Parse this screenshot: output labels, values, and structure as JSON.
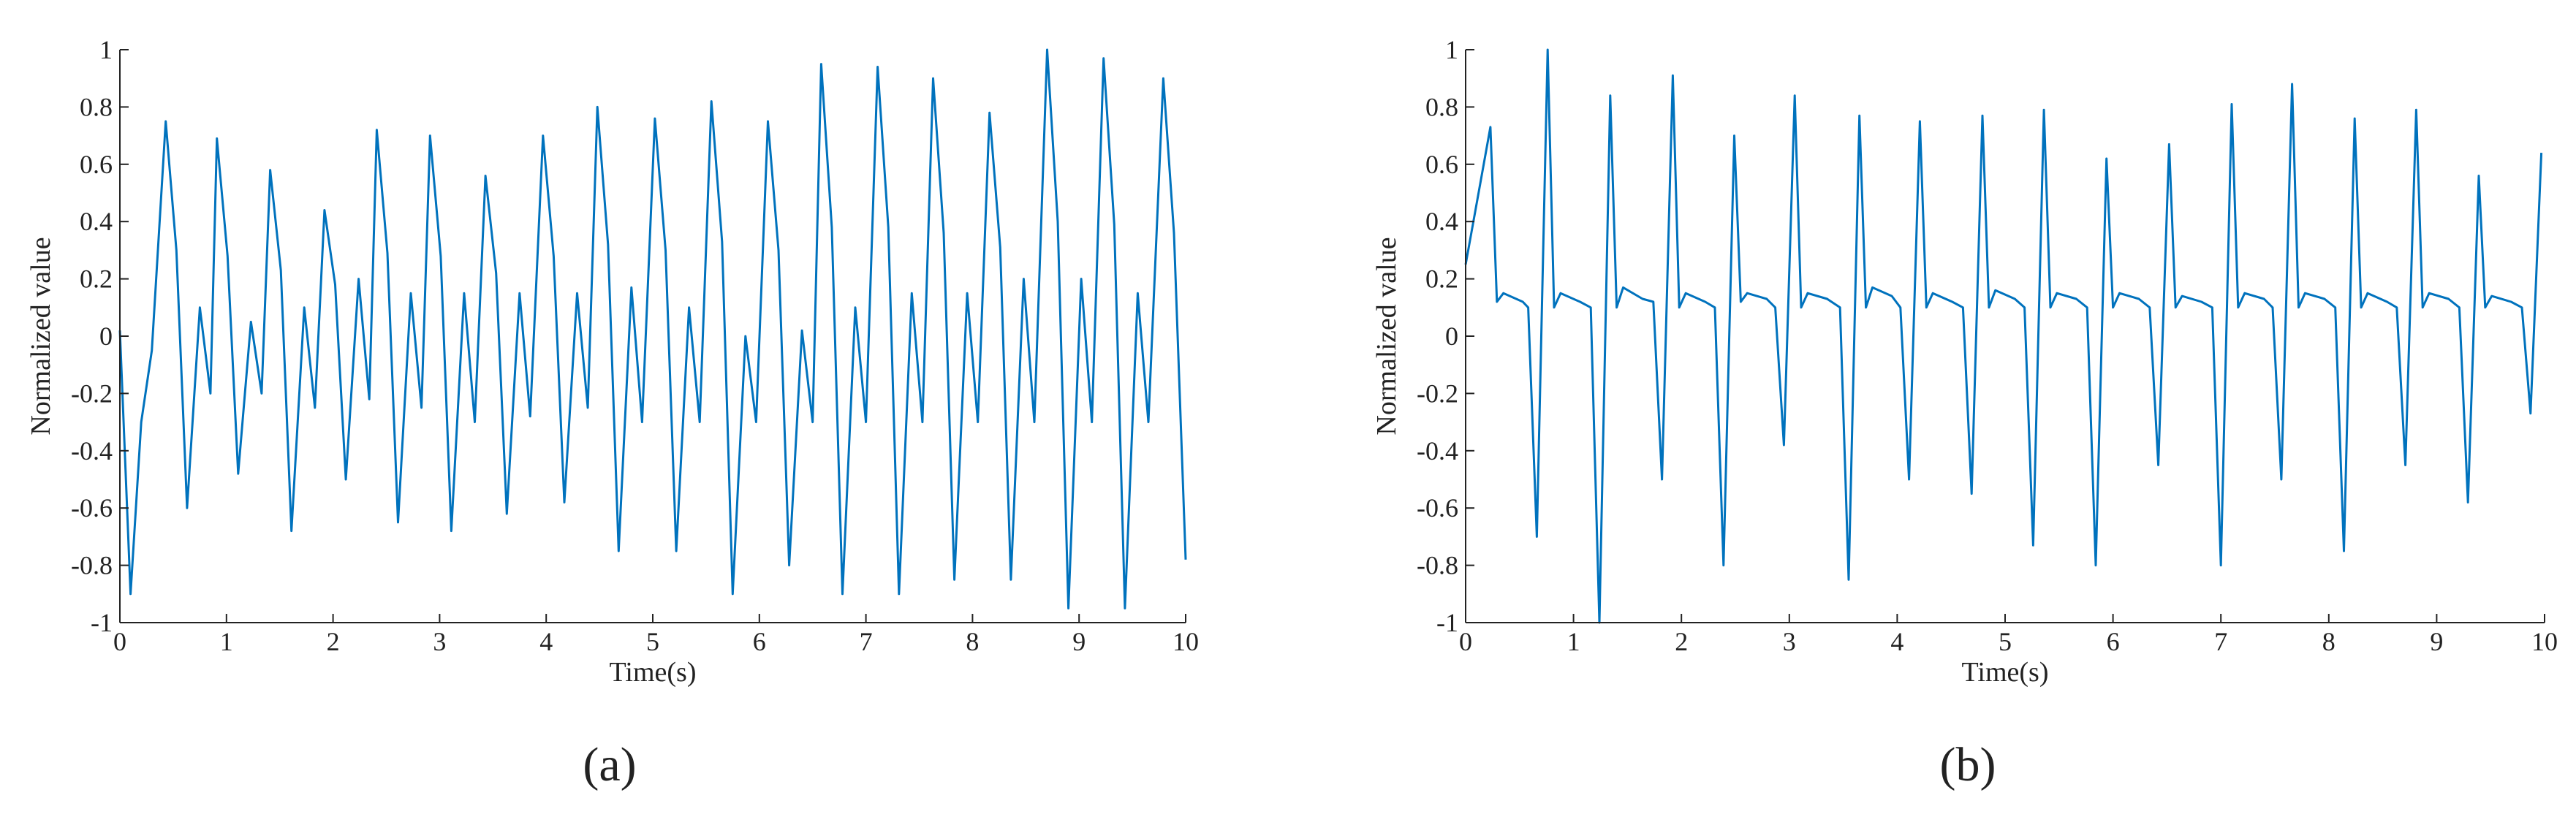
{
  "chart_data": [
    {
      "type": "line",
      "label": "(a)",
      "xlabel": "Time(s)",
      "ylabel": "Normalized value",
      "color": "#0072bd",
      "xlim": [
        0,
        10
      ],
      "xticks": [
        0,
        1,
        2,
        3,
        4,
        5,
        6,
        7,
        8,
        9,
        10
      ],
      "ylim": [
        -1,
        1
      ],
      "yticks": [
        -1,
        -0.8,
        -0.6,
        -0.4,
        -0.2,
        0,
        0.2,
        0.4,
        0.6,
        0.8,
        1
      ],
      "x": [
        0,
        0.1,
        0.2,
        0.3,
        0.43,
        0.53,
        0.63,
        0.75,
        0.85,
        0.91,
        1.01,
        1.11,
        1.23,
        1.33,
        1.41,
        1.51,
        1.61,
        1.73,
        1.83,
        1.92,
        2.02,
        2.12,
        2.24,
        2.34,
        2.41,
        2.51,
        2.61,
        2.73,
        2.83,
        2.91,
        3.01,
        3.11,
        3.23,
        3.33,
        3.43,
        3.53,
        3.63,
        3.75,
        3.85,
        3.97,
        4.07,
        4.17,
        4.29,
        4.39,
        4.48,
        4.58,
        4.68,
        4.8,
        4.9,
        5.02,
        5.12,
        5.22,
        5.34,
        5.44,
        5.55,
        5.65,
        5.75,
        5.87,
        5.97,
        6.08,
        6.18,
        6.28,
        6.4,
        6.5,
        6.58,
        6.68,
        6.78,
        6.9,
        7.0,
        7.11,
        7.21,
        7.31,
        7.43,
        7.53,
        7.63,
        7.73,
        7.83,
        7.95,
        8.05,
        8.16,
        8.26,
        8.36,
        8.48,
        8.58,
        8.7,
        8.8,
        8.9,
        9.02,
        9.12,
        9.23,
        9.33,
        9.43,
        9.55,
        9.65,
        9.79,
        9.89,
        10
      ],
      "values": [
        0.02,
        -0.9,
        -0.3,
        -0.05,
        0.75,
        0.3,
        -0.6,
        0.1,
        -0.2,
        0.69,
        0.28,
        -0.48,
        0.05,
        -0.2,
        0.58,
        0.23,
        -0.68,
        0.1,
        -0.25,
        0.44,
        0.18,
        -0.5,
        0.2,
        -0.22,
        0.72,
        0.29,
        -0.65,
        0.15,
        -0.25,
        0.7,
        0.28,
        -0.68,
        0.15,
        -0.3,
        0.56,
        0.22,
        -0.62,
        0.15,
        -0.28,
        0.7,
        0.28,
        -0.58,
        0.15,
        -0.25,
        0.8,
        0.32,
        -0.75,
        0.17,
        -0.3,
        0.76,
        0.3,
        -0.75,
        0.1,
        -0.3,
        0.82,
        0.33,
        -0.9,
        0,
        -0.3,
        0.75,
        0.3,
        -0.8,
        0.02,
        -0.3,
        0.95,
        0.38,
        -0.9,
        0.1,
        -0.3,
        0.94,
        0.38,
        -0.9,
        0.15,
        -0.3,
        0.9,
        0.36,
        -0.85,
        0.15,
        -0.3,
        0.78,
        0.31,
        -0.85,
        0.2,
        -0.3,
        1,
        0.4,
        -0.95,
        0.2,
        -0.3,
        0.97,
        0.39,
        -0.95,
        0.15,
        -0.3,
        0.9,
        0.36,
        -0.78
      ]
    },
    {
      "type": "line",
      "label": "(b)",
      "xlabel": "Time(s)",
      "ylabel": "Normalized value",
      "color": "#0072bd",
      "xlim": [
        0,
        10
      ],
      "xticks": [
        0,
        1,
        2,
        3,
        4,
        5,
        6,
        7,
        8,
        9,
        10
      ],
      "ylim": [
        -1,
        1
      ],
      "yticks": [
        -1,
        -0.8,
        -0.6,
        -0.4,
        -0.2,
        0,
        0.2,
        0.4,
        0.6,
        0.8,
        1
      ],
      "x": [
        0,
        0.12,
        0.23,
        0.29,
        0.35,
        0.53,
        0.58,
        0.66,
        0.76,
        0.82,
        0.88,
        1.06,
        1.16,
        1.24,
        1.34,
        1.4,
        1.46,
        1.64,
        1.74,
        1.82,
        1.92,
        1.98,
        2.04,
        2.22,
        2.31,
        2.39,
        2.49,
        2.55,
        2.61,
        2.79,
        2.87,
        2.95,
        3.05,
        3.11,
        3.17,
        3.35,
        3.47,
        3.55,
        3.65,
        3.71,
        3.77,
        3.95,
        4.03,
        4.11,
        4.21,
        4.27,
        4.33,
        4.51,
        4.61,
        4.69,
        4.79,
        4.85,
        4.91,
        5.09,
        5.18,
        5.26,
        5.36,
        5.42,
        5.48,
        5.66,
        5.76,
        5.84,
        5.94,
        6,
        6.06,
        6.24,
        6.34,
        6.42,
        6.52,
        6.58,
        6.64,
        6.82,
        6.92,
        7,
        7.1,
        7.16,
        7.22,
        7.4,
        7.48,
        7.56,
        7.66,
        7.72,
        7.78,
        7.96,
        8.06,
        8.14,
        8.24,
        8.3,
        8.36,
        8.54,
        8.63,
        8.71,
        8.81,
        8.87,
        8.93,
        9.11,
        9.21,
        9.29,
        9.39,
        9.45,
        9.51,
        9.69,
        9.79,
        9.87,
        9.97
      ],
      "values": [
        0.25,
        0.5,
        0.73,
        0.12,
        0.15,
        0.12,
        0.1,
        -0.7,
        1,
        0.1,
        0.15,
        0.12,
        0.1,
        -1,
        0.84,
        0.1,
        0.17,
        0.13,
        0.12,
        -0.5,
        0.91,
        0.1,
        0.15,
        0.12,
        0.1,
        -0.8,
        0.7,
        0.12,
        0.15,
        0.13,
        0.1,
        -0.38,
        0.84,
        0.1,
        0.15,
        0.13,
        0.1,
        -0.85,
        0.77,
        0.1,
        0.17,
        0.14,
        0.1,
        -0.5,
        0.75,
        0.1,
        0.15,
        0.12,
        0.1,
        -0.55,
        0.77,
        0.1,
        0.16,
        0.13,
        0.1,
        -0.73,
        0.79,
        0.1,
        0.15,
        0.13,
        0.1,
        -0.8,
        0.62,
        0.1,
        0.15,
        0.13,
        0.1,
        -0.45,
        0.67,
        0.1,
        0.14,
        0.12,
        0.1,
        -0.8,
        0.81,
        0.1,
        0.15,
        0.13,
        0.1,
        -0.5,
        0.88,
        0.1,
        0.15,
        0.13,
        0.1,
        -0.75,
        0.76,
        0.1,
        0.15,
        0.12,
        0.1,
        -0.45,
        0.79,
        0.1,
        0.15,
        0.13,
        0.1,
        -0.58,
        0.56,
        0.1,
        0.14,
        0.12,
        0.1,
        -0.27,
        0.64
      ]
    }
  ]
}
